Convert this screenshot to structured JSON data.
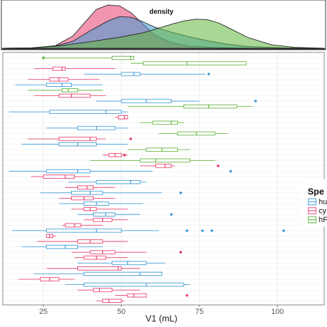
{
  "chart_data": [
    {
      "type": "area",
      "annotation": "density",
      "x_range": [
        0,
        110
      ],
      "series": [
        {
          "color": "#e8406e",
          "x": [
            0,
            10,
            18,
            24,
            28,
            32,
            36,
            40,
            44,
            48,
            52,
            58,
            64,
            72,
            80,
            90,
            110
          ],
          "density": [
            0.0,
            0.01,
            0.06,
            0.28,
            0.58,
            0.88,
            0.98,
            0.96,
            0.8,
            0.55,
            0.3,
            0.12,
            0.05,
            0.02,
            0.01,
            0.0,
            0.0
          ]
        },
        {
          "color": "#3f9bd6",
          "x": [
            0,
            10,
            18,
            24,
            30,
            36,
            40,
            44,
            48,
            52,
            58,
            64,
            70,
            76,
            84,
            96,
            110
          ],
          "density": [
            0.0,
            0.01,
            0.05,
            0.16,
            0.4,
            0.62,
            0.72,
            0.7,
            0.6,
            0.48,
            0.36,
            0.26,
            0.17,
            0.1,
            0.04,
            0.01,
            0.0
          ]
        },
        {
          "color": "#62b63e",
          "x": [
            0,
            10,
            20,
            30,
            40,
            48,
            54,
            58,
            62,
            66,
            70,
            74,
            78,
            84,
            92,
            100,
            110
          ],
          "density": [
            0.0,
            0.01,
            0.06,
            0.15,
            0.25,
            0.35,
            0.47,
            0.55,
            0.62,
            0.66,
            0.65,
            0.57,
            0.44,
            0.24,
            0.08,
            0.02,
            0.0
          ]
        }
      ]
    },
    {
      "type": "boxplot",
      "xlabel": "V1 (mL)",
      "xlim": [
        12,
        115
      ],
      "xticks": [
        25,
        50,
        75,
        100
      ],
      "legend_title": "Spe",
      "legend_labels": [
        "hu",
        "cy",
        "hF"
      ],
      "legend_colors": [
        "#3f9bd6",
        "#e8406e",
        "#62b63e"
      ],
      "boxes": [
        {
          "species": 2,
          "whisker": [
            25,
            25
          ],
          "q": [
            47,
            53,
            54
          ],
          "outliers": [
            25
          ]
        },
        {
          "species": 2,
          "whisker": [
            53,
            64
          ],
          "q": [
            57,
            71,
            90
          ],
          "outliers": []
        },
        {
          "species": 1,
          "whisker": [
            22,
            48
          ],
          "q": [
            28,
            31,
            32
          ],
          "outliers": []
        },
        {
          "species": 0,
          "whisker": [
            38,
            77
          ],
          "q": [
            50,
            54,
            56
          ],
          "outliers": [
            78
          ]
        },
        {
          "species": 1,
          "whisker": [
            20,
            43
          ],
          "q": [
            27,
            30,
            33
          ],
          "outliers": []
        },
        {
          "species": 0,
          "whisker": [
            16,
            44
          ],
          "q": [
            26,
            31,
            34
          ],
          "outliers": []
        },
        {
          "species": 2,
          "whisker": [
            20,
            44
          ],
          "q": [
            31,
            33,
            36
          ],
          "outliers": []
        },
        {
          "species": 1,
          "whisker": [
            22,
            45
          ],
          "q": [
            30,
            34,
            40
          ],
          "outliers": []
        },
        {
          "species": 0,
          "whisker": [
            42,
            75
          ],
          "q": [
            50,
            58,
            66
          ],
          "outliers": [
            93
          ]
        },
        {
          "species": 2,
          "whisker": [
            52,
            92
          ],
          "q": [
            70,
            78,
            87
          ],
          "outliers": []
        },
        {
          "species": 0,
          "whisker": [
            14,
            52
          ],
          "q": [
            27,
            45,
            50
          ],
          "outliers": []
        },
        {
          "species": 1,
          "whisker": [
            48,
            52
          ],
          "q": [
            49,
            51,
            52
          ],
          "outliers": []
        },
        {
          "species": 2,
          "whisker": [
            56,
            70
          ],
          "q": [
            60,
            66,
            68
          ],
          "outliers": []
        },
        {
          "species": 0,
          "whisker": [
            26,
            52
          ],
          "q": [
            36,
            42,
            48
          ],
          "outliers": []
        },
        {
          "species": 2,
          "whisker": [
            62,
            84
          ],
          "q": [
            68,
            74,
            80
          ],
          "outliers": []
        },
        {
          "species": 1,
          "whisker": [
            20,
            45
          ],
          "q": [
            30,
            40,
            42
          ],
          "outliers": [
            53
          ]
        },
        {
          "species": 0,
          "whisker": [
            18,
            52
          ],
          "q": [
            30,
            36,
            42
          ],
          "outliers": []
        },
        {
          "species": 2,
          "whisker": [
            52,
            72
          ],
          "q": [
            58,
            63,
            68
          ],
          "outliers": []
        },
        {
          "species": 1,
          "whisker": [
            44,
            52
          ],
          "q": [
            46,
            48,
            50
          ],
          "outliers": [
            51
          ]
        },
        {
          "species": 2,
          "whisker": [
            40,
            80
          ],
          "q": [
            56,
            61,
            72
          ],
          "outliers": []
        },
        {
          "species": 1,
          "whisker": [
            56,
            67
          ],
          "q": [
            61,
            64,
            66
          ],
          "outliers": [
            81
          ]
        },
        {
          "species": 0,
          "whisker": [
            14,
            60
          ],
          "q": [
            26,
            36,
            40
          ],
          "outliers": [
            85
          ]
        },
        {
          "species": 1,
          "whisker": [
            21,
            40
          ],
          "q": [
            25,
            32,
            35
          ],
          "outliers": []
        },
        {
          "species": 0,
          "whisker": [
            33,
            58
          ],
          "q": [
            42,
            53,
            56
          ],
          "outliers": []
        },
        {
          "species": 1,
          "whisker": [
            32,
            48
          ],
          "q": [
            36,
            39,
            41
          ],
          "outliers": []
        },
        {
          "species": 0,
          "whisker": [
            24,
            63
          ],
          "q": [
            34,
            40,
            44
          ],
          "outliers": [
            69
          ]
        },
        {
          "species": 1,
          "whisker": [
            30,
            48
          ],
          "q": [
            34,
            38,
            41
          ],
          "outliers": []
        },
        {
          "species": 0,
          "whisker": [
            30,
            57
          ],
          "q": [
            38,
            42,
            46
          ],
          "outliers": []
        },
        {
          "species": 1,
          "whisker": [
            34,
            52
          ],
          "q": [
            38,
            40,
            42
          ],
          "outliers": []
        },
        {
          "species": 0,
          "whisker": [
            36,
            56
          ],
          "q": [
            41,
            45,
            48
          ],
          "outliers": [
            66
          ]
        },
        {
          "species": 1,
          "whisker": [
            38,
            52
          ],
          "q": [
            41,
            44,
            47
          ],
          "outliers": []
        },
        {
          "species": 1,
          "whisker": [
            31,
            44
          ],
          "q": [
            32,
            35,
            37
          ],
          "outliers": []
        },
        {
          "species": 0,
          "whisker": [
            15,
            62
          ],
          "q": [
            26,
            42,
            50
          ],
          "outliers": [
            71,
            76,
            79,
            102
          ]
        },
        {
          "species": 1,
          "whisker": [
            26,
            29
          ],
          "q": [
            26,
            27,
            28
          ],
          "outliers": []
        },
        {
          "species": 1,
          "whisker": [
            23,
            52
          ],
          "q": [
            36,
            40,
            44
          ],
          "outliers": []
        },
        {
          "species": 0,
          "whisker": [
            18,
            44
          ],
          "q": [
            26,
            32,
            36
          ],
          "outliers": []
        },
        {
          "species": 1,
          "whisker": [
            34,
            58
          ],
          "q": [
            40,
            44,
            48
          ],
          "outliers": [
            69
          ]
        },
        {
          "species": 1,
          "whisker": [
            35,
            52
          ],
          "q": [
            38,
            42,
            45
          ],
          "outliers": []
        },
        {
          "species": 0,
          "whisker": [
            36,
            64
          ],
          "q": [
            47,
            52,
            58
          ],
          "outliers": []
        },
        {
          "species": 1,
          "whisker": [
            26,
            56
          ],
          "q": [
            36,
            49,
            50
          ],
          "outliers": []
        },
        {
          "species": 0,
          "whisker": [
            22,
            62
          ],
          "q": [
            38,
            56,
            63
          ],
          "outliers": []
        },
        {
          "species": 1,
          "whisker": [
            17,
            35
          ],
          "q": [
            24,
            27,
            30
          ],
          "outliers": []
        },
        {
          "species": 0,
          "whisker": [
            32,
            72
          ],
          "q": [
            38,
            58,
            70
          ],
          "outliers": []
        },
        {
          "species": 1,
          "whisker": [
            36,
            56
          ],
          "q": [
            41,
            43,
            47
          ],
          "outliers": []
        },
        {
          "species": 1,
          "whisker": [
            48,
            58
          ],
          "q": [
            52,
            54,
            58
          ],
          "outliers": [
            71
          ]
        },
        {
          "species": 1,
          "whisker": [
            42,
            51
          ],
          "q": [
            44,
            46,
            50
          ],
          "outliers": []
        }
      ]
    }
  ]
}
